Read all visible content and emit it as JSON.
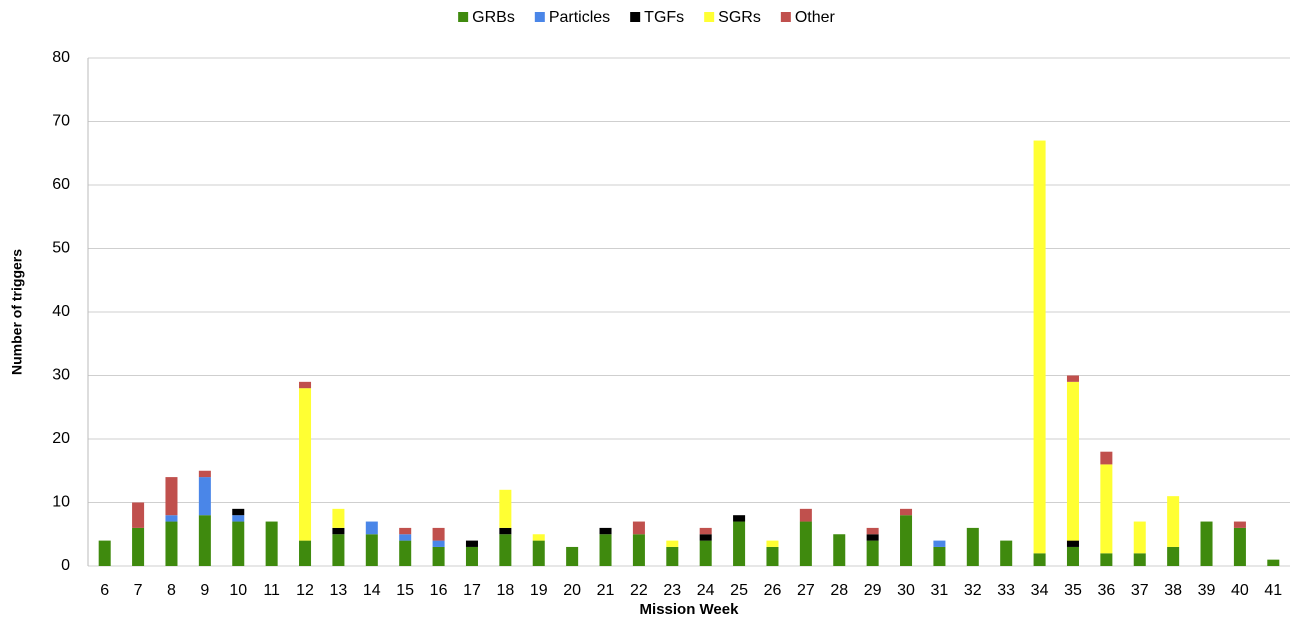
{
  "chart_data": {
    "type": "stacked_bar",
    "xlabel": "Mission Week",
    "ylabel": "Number of triggers",
    "categories": [
      "6",
      "7",
      "8",
      "9",
      "10",
      "11",
      "12",
      "13",
      "14",
      "15",
      "16",
      "17",
      "18",
      "19",
      "20",
      "21",
      "22",
      "23",
      "24",
      "25",
      "26",
      "27",
      "28",
      "29",
      "30",
      "31",
      "32",
      "33",
      "34",
      "35",
      "36",
      "37",
      "38",
      "39",
      "40",
      "41"
    ],
    "series": [
      {
        "name": "GRBs",
        "color": "#3f8a0e",
        "values": [
          4,
          6,
          7,
          8,
          7,
          7,
          4,
          5,
          5,
          4,
          3,
          3,
          5,
          4,
          3,
          5,
          5,
          3,
          4,
          7,
          3,
          7,
          5,
          4,
          8,
          3,
          6,
          4,
          2,
          3,
          2,
          2,
          3,
          7,
          6,
          1
        ]
      },
      {
        "name": "Particles",
        "color": "#4a86e8",
        "values": [
          0,
          0,
          1,
          6,
          1,
          0,
          0,
          0,
          2,
          1,
          1,
          0,
          0,
          0,
          0,
          0,
          0,
          0,
          0,
          0,
          0,
          0,
          0,
          0,
          0,
          1,
          0,
          0,
          0,
          0,
          0,
          0,
          0,
          0,
          0,
          0
        ]
      },
      {
        "name": "TGFs",
        "color": "#000000",
        "values": [
          0,
          0,
          0,
          0,
          1,
          0,
          0,
          1,
          0,
          0,
          0,
          1,
          1,
          0,
          0,
          1,
          0,
          0,
          1,
          1,
          0,
          0,
          0,
          1,
          0,
          0,
          0,
          0,
          0,
          1,
          0,
          0,
          0,
          0,
          0,
          0
        ]
      },
      {
        "name": "SGRs",
        "color": "#ffff33",
        "values": [
          0,
          0,
          0,
          0,
          0,
          0,
          24,
          3,
          0,
          0,
          0,
          0,
          6,
          1,
          0,
          0,
          0,
          1,
          0,
          0,
          1,
          0,
          0,
          0,
          0,
          0,
          0,
          0,
          65,
          25,
          14,
          5,
          8,
          0,
          0,
          0
        ]
      },
      {
        "name": "Other",
        "color": "#c0504d",
        "values": [
          0,
          4,
          6,
          1,
          0,
          0,
          1,
          0,
          0,
          1,
          2,
          0,
          0,
          0,
          0,
          0,
          2,
          0,
          1,
          0,
          0,
          2,
          0,
          1,
          1,
          0,
          0,
          0,
          0,
          1,
          2,
          0,
          0,
          0,
          1,
          0
        ]
      }
    ],
    "ylim": [
      0,
      80
    ],
    "yticks": [
      0,
      10,
      20,
      30,
      40,
      50,
      60,
      70,
      80
    ],
    "grid": true,
    "legend": "top"
  }
}
